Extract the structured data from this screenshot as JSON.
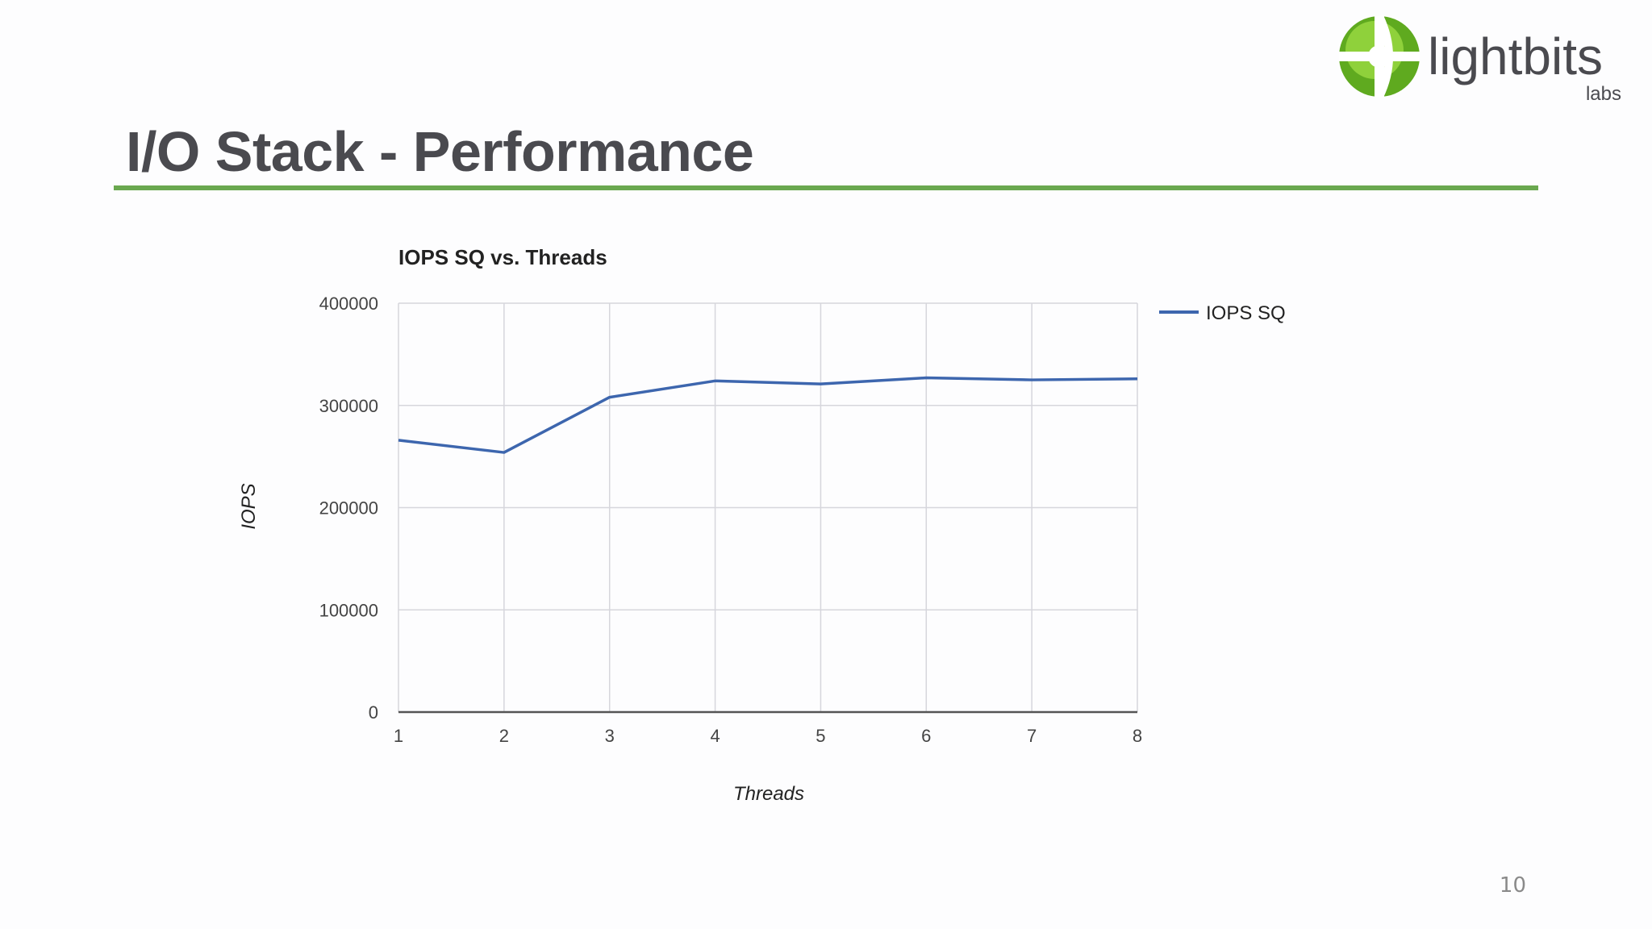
{
  "slide": {
    "title": "I/O Stack - Performance",
    "page_number": "10",
    "accent_color": "#6aa84f"
  },
  "logo": {
    "name": "lightbits",
    "sub": "labs",
    "icon": "green-globe-logo-icon"
  },
  "chart_data": {
    "type": "line",
    "title": "IOPS SQ vs. Threads",
    "xlabel": "Threads",
    "ylabel": "IOPS",
    "x": [
      1,
      2,
      3,
      4,
      5,
      6,
      7,
      8
    ],
    "series": [
      {
        "name": "IOPS SQ",
        "color": "#3d66ae",
        "values": [
          266000,
          254000,
          308000,
          324000,
          321000,
          327000,
          325000,
          326000
        ]
      }
    ],
    "ylim": [
      0,
      400000
    ],
    "yticks": [
      0,
      100000,
      200000,
      300000,
      400000
    ],
    "ytick_labels": [
      "0",
      "100000",
      "200000",
      "300000",
      "400000"
    ],
    "xtick_labels": [
      "1",
      "2",
      "3",
      "4",
      "5",
      "6",
      "7",
      "8"
    ],
    "grid": true,
    "legend_position": "right"
  }
}
